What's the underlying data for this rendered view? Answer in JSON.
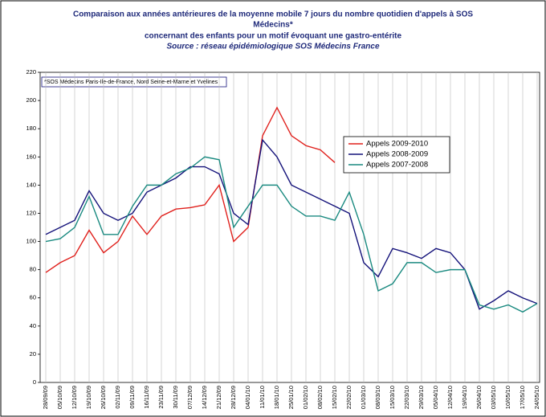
{
  "chart_data": {
    "type": "line",
    "title": [
      "Comparaison aux années antérieures de la moyenne mobile 7 jours du nombre quotidien d'appels à SOS",
      "Médecins*",
      "concernant des enfants pour un motif évoquant une gastro-entérite",
      "Source : réseau épidémiologique SOS Médecins France"
    ],
    "annotation": "*SOS Médecins Paris-Ile-de-France, Nord Seine-et-Marne et Yvelines",
    "categories": [
      "28/09/09",
      "05/10/09",
      "12/10/09",
      "19/10/09",
      "26/10/09",
      "02/11/09",
      "09/11/09",
      "16/11/09",
      "23/11/09",
      "30/11/09",
      "07/12/09",
      "14/12/09",
      "21/12/09",
      "28/12/09",
      "04/01/10",
      "11/01/10",
      "18/01/10",
      "25/01/10",
      "01/02/10",
      "08/02/10",
      "15/02/10",
      "22/02/10",
      "01/03/10",
      "08/03/10",
      "15/03/10",
      "22/03/10",
      "29/03/10",
      "05/04/10",
      "12/04/10",
      "19/04/10",
      "26/04/10",
      "03/05/10",
      "10/05/10",
      "17/05/10",
      "24/05/10"
    ],
    "series": [
      {
        "name": "Appels 2009-2010",
        "color": "#e0201c",
        "values": [
          78,
          85,
          90,
          108,
          92,
          100,
          118,
          105,
          118,
          123,
          124,
          126,
          140,
          100,
          110,
          175,
          195,
          175,
          168,
          165,
          156,
          null,
          null,
          null,
          null,
          null,
          null,
          null,
          null,
          null,
          null,
          null,
          null,
          null,
          null
        ]
      },
      {
        "name": "Appels 2008-2009",
        "color": "#14127a",
        "values": [
          105,
          110,
          115,
          136,
          120,
          115,
          120,
          135,
          140,
          145,
          153,
          153,
          148,
          120,
          112,
          172,
          160,
          140,
          135,
          130,
          125,
          120,
          85,
          75,
          95,
          92,
          88,
          95,
          92,
          80,
          52,
          58,
          65,
          60,
          56
        ]
      },
      {
        "name": "Appels 2007-2008",
        "color": "#1a8a80",
        "values": [
          100,
          102,
          110,
          132,
          105,
          105,
          125,
          140,
          140,
          148,
          152,
          160,
          158,
          110,
          125,
          140,
          140,
          125,
          118,
          118,
          115,
          135,
          105,
          65,
          70,
          85,
          85,
          78,
          80,
          80,
          55,
          52,
          55,
          50,
          56
        ]
      }
    ],
    "ylim": [
      0,
      220
    ],
    "yticks": [
      0,
      20,
      40,
      60,
      80,
      100,
      120,
      140,
      160,
      180,
      200,
      220
    ],
    "grid": true,
    "legend": "right"
  }
}
